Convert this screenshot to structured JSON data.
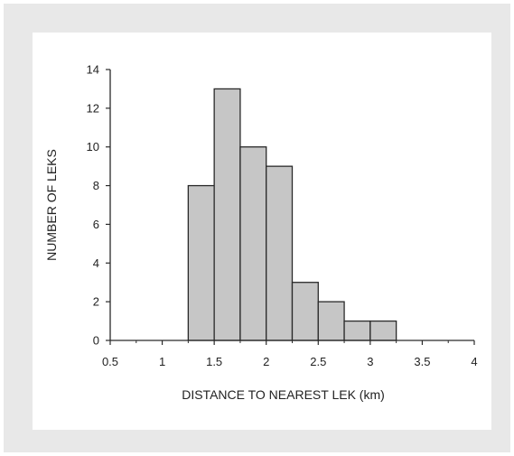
{
  "chart_data": {
    "type": "bar",
    "title": "",
    "xlabel": "DISTANCE TO NEAREST LEK (km)",
    "ylabel": "NUMBER OF LEKS",
    "bin_width": 0.25,
    "bins": [
      {
        "start": 1.25,
        "end": 1.5,
        "count": 8
      },
      {
        "start": 1.5,
        "end": 1.75,
        "count": 13
      },
      {
        "start": 1.75,
        "end": 2.0,
        "count": 10
      },
      {
        "start": 2.0,
        "end": 2.25,
        "count": 9
      },
      {
        "start": 2.25,
        "end": 2.5,
        "count": 3
      },
      {
        "start": 2.5,
        "end": 2.75,
        "count": 2
      },
      {
        "start": 2.75,
        "end": 3.0,
        "count": 1
      },
      {
        "start": 3.0,
        "end": 3.25,
        "count": 1
      }
    ],
    "xlim": [
      0.5,
      4
    ],
    "ylim": [
      0,
      14
    ],
    "xticks": [
      0.5,
      1,
      1.5,
      2,
      2.5,
      3,
      3.5,
      4
    ],
    "xtick_labels": [
      "0.5",
      "1",
      "1.5",
      "2",
      "2.5",
      "3",
      "3.5",
      "4"
    ],
    "yticks": [
      0,
      2,
      4,
      6,
      8,
      10,
      12,
      14
    ],
    "ytick_labels": [
      "0",
      "2",
      "4",
      "6",
      "8",
      "10",
      "12",
      "14"
    ],
    "grid": false,
    "colors": {
      "bar_fill": "#c6c6c6",
      "bar_stroke": "#2a2a2a",
      "axis": "#2a2a2a",
      "background_frame": "#e8e8e8",
      "plot_background": "#ffffff"
    }
  }
}
